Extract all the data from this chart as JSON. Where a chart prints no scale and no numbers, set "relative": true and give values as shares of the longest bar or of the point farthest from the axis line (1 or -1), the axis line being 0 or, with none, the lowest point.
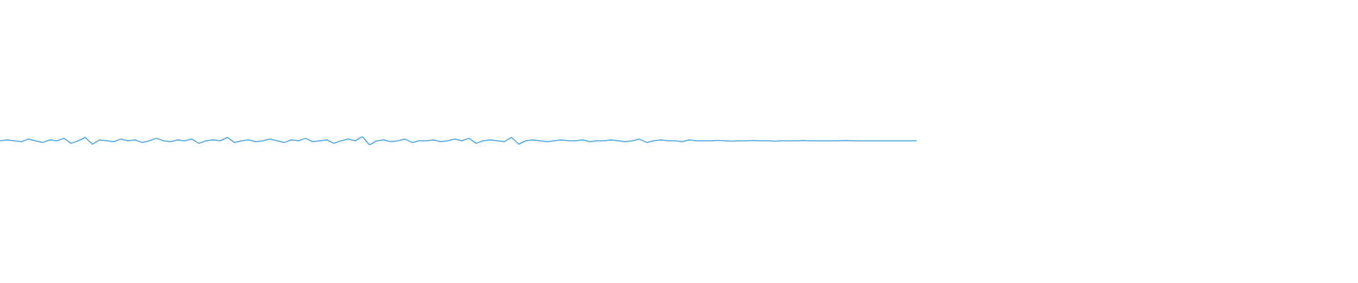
{
  "chart_data": {
    "type": "line",
    "relative": true,
    "color": "#4ea6e0",
    "categories": [
      null,
      null,
      null,
      null,
      null,
      null,
      null,
      null,
      null,
      null,
      null,
      null,
      null,
      null,
      null,
      null,
      null,
      null,
      null,
      null,
      null,
      null,
      null,
      null,
      null,
      null,
      null,
      null,
      null,
      null,
      null,
      null,
      null,
      null,
      null,
      null,
      null,
      null,
      null,
      null,
      null,
      null,
      null,
      null,
      null,
      null,
      null,
      null,
      null,
      null,
      null,
      null,
      null,
      null,
      null,
      null,
      null,
      null,
      null,
      null,
      null,
      null,
      null,
      null,
      null,
      null,
      null,
      null,
      null,
      null,
      null,
      null,
      null,
      null,
      null,
      null,
      null,
      null,
      null,
      null,
      null,
      null,
      null,
      null,
      null,
      null,
      null,
      null,
      null,
      null,
      null,
      null,
      null,
      null,
      null,
      null,
      null,
      null,
      null,
      null,
      null,
      null,
      null,
      null,
      null,
      null,
      null,
      null,
      null,
      null,
      null,
      null,
      null,
      null,
      null,
      null,
      null,
      null,
      null,
      null,
      null,
      null,
      null,
      null,
      null,
      null,
      null,
      null,
      null,
      null
    ],
    "values": [
      0.5,
      0.6,
      0.5,
      0.4,
      0.7,
      0.5,
      0.3,
      0.6,
      0.5,
      0.8,
      0.2,
      0.5,
      0.9,
      0.1,
      0.6,
      0.5,
      0.4,
      0.7,
      0.5,
      0.6,
      0.3,
      0.5,
      0.8,
      0.5,
      0.4,
      0.6,
      0.5,
      0.7,
      0.2,
      0.5,
      0.6,
      0.5,
      0.9,
      0.3,
      0.5,
      0.6,
      0.4,
      0.5,
      0.7,
      0.5,
      0.3,
      0.6,
      0.5,
      0.8,
      0.4,
      0.5,
      0.6,
      0.2,
      0.5,
      0.7,
      0.5,
      1,
      0,
      0.5,
      0.6,
      0.4,
      0.5,
      0.7,
      0.3,
      0.5,
      0.5,
      0.6,
      0.4,
      0.5,
      0.7,
      0.5,
      0.8,
      0.2,
      0.5,
      0.6,
      0.5,
      0.4,
      0.9,
      0.1,
      0.5,
      0.6,
      0.5,
      0.4,
      0.5,
      0.6,
      0.5,
      0.5,
      0.6,
      0.4,
      0.5,
      0.5,
      0.6,
      0.5,
      0.4,
      0.5,
      0.7,
      0.3,
      0.5,
      0.6,
      0.5,
      0.5,
      0.4,
      0.6,
      0.5,
      0.5,
      0.5,
      0.55,
      0.5,
      0.45,
      0.5,
      0.5,
      0.55,
      0.5,
      0.5,
      0.45,
      0.5,
      0.5,
      0.5,
      0.55,
      0.5,
      0.5,
      0.5,
      0.5,
      0.5,
      0.55,
      0.5,
      0.5,
      0.5,
      0.5,
      0.5,
      0.5,
      0.5,
      0.5,
      0.5,
      0.5
    ]
  }
}
